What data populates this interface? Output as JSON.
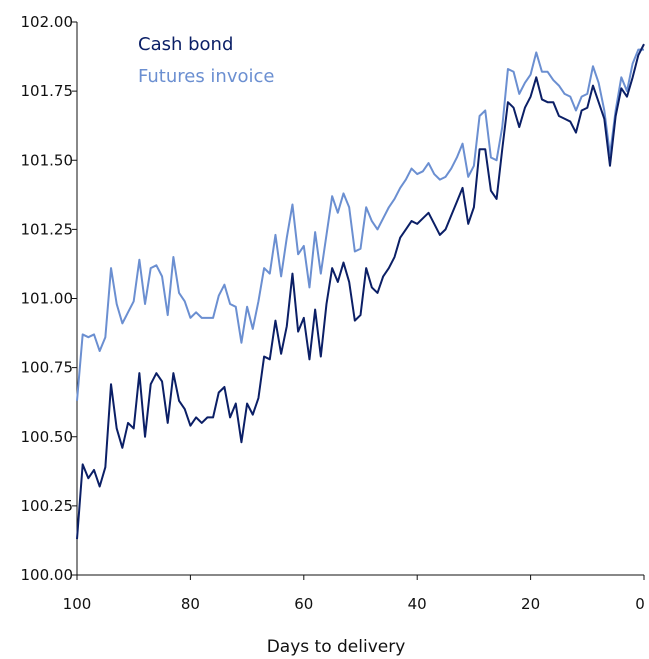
{
  "chart_data": {
    "type": "line",
    "xlabel": "Days to delivery",
    "ylabel": "",
    "xlim": [
      100,
      0
    ],
    "ylim": [
      100.0,
      102.0
    ],
    "x_ticks": [
      "100",
      "80",
      "60",
      "40",
      "20",
      "0"
    ],
    "y_ticks": [
      "100.00",
      "100.25",
      "100.50",
      "100.75",
      "101.00",
      "101.25",
      "101.50",
      "101.75",
      "102.00"
    ],
    "grid": false,
    "legend_position": "top-left",
    "x": [
      100,
      99,
      98,
      97,
      96,
      95,
      94,
      93,
      92,
      91,
      90,
      89,
      88,
      87,
      86,
      85,
      84,
      83,
      82,
      81,
      80,
      79,
      78,
      77,
      76,
      75,
      74,
      73,
      72,
      71,
      70,
      69,
      68,
      67,
      66,
      65,
      64,
      63,
      62,
      61,
      60,
      59,
      58,
      57,
      56,
      55,
      54,
      53,
      52,
      51,
      50,
      49,
      48,
      47,
      46,
      45,
      44,
      43,
      42,
      41,
      40,
      39,
      38,
      37,
      36,
      35,
      34,
      33,
      32,
      31,
      30,
      29,
      28,
      27,
      26,
      25,
      24,
      23,
      22,
      21,
      20,
      19,
      18,
      17,
      16,
      15,
      14,
      13,
      12,
      11,
      10,
      9,
      8,
      7,
      6,
      5,
      4,
      3,
      2,
      1,
      0
    ],
    "series": [
      {
        "name": "Cash bond",
        "color": "#0b1f66",
        "values": [
          100.13,
          100.4,
          100.35,
          100.38,
          100.32,
          100.39,
          100.69,
          100.53,
          100.46,
          100.55,
          100.53,
          100.73,
          100.5,
          100.69,
          100.73,
          100.7,
          100.55,
          100.73,
          100.63,
          100.6,
          100.54,
          100.57,
          100.55,
          100.57,
          100.57,
          100.66,
          100.68,
          100.57,
          100.62,
          100.48,
          100.62,
          100.58,
          100.64,
          100.79,
          100.78,
          100.92,
          100.8,
          100.9,
          101.09,
          100.88,
          100.93,
          100.78,
          100.96,
          100.79,
          100.98,
          101.11,
          101.06,
          101.13,
          101.06,
          100.92,
          100.94,
          101.11,
          101.04,
          101.02,
          101.08,
          101.11,
          101.15,
          101.22,
          101.25,
          101.28,
          101.27,
          101.29,
          101.31,
          101.27,
          101.23,
          101.25,
          101.3,
          101.35,
          101.4,
          101.27,
          101.33,
          101.54,
          101.54,
          101.39,
          101.36,
          101.54,
          101.71,
          101.69,
          101.62,
          101.69,
          101.73,
          101.8,
          101.72,
          101.71,
          101.71,
          101.66,
          101.65,
          101.64,
          101.6,
          101.68,
          101.69,
          101.77,
          101.71,
          101.65,
          101.48,
          101.66,
          101.76,
          101.73,
          101.8,
          101.88,
          101.92
        ]
      },
      {
        "name": "Futures invoice",
        "color": "#6b8fd1",
        "values": [
          100.63,
          100.87,
          100.86,
          100.87,
          100.81,
          100.86,
          101.11,
          100.98,
          100.91,
          100.95,
          100.99,
          101.14,
          100.98,
          101.11,
          101.12,
          101.08,
          100.94,
          101.15,
          101.02,
          100.99,
          100.93,
          100.95,
          100.93,
          100.93,
          100.93,
          101.01,
          101.05,
          100.98,
          100.97,
          100.84,
          100.97,
          100.89,
          100.99,
          101.11,
          101.09,
          101.23,
          101.08,
          101.22,
          101.34,
          101.16,
          101.19,
          101.04,
          101.24,
          101.09,
          101.23,
          101.37,
          101.31,
          101.38,
          101.33,
          101.17,
          101.18,
          101.33,
          101.28,
          101.25,
          101.29,
          101.33,
          101.36,
          101.4,
          101.43,
          101.47,
          101.45,
          101.46,
          101.49,
          101.45,
          101.43,
          101.44,
          101.47,
          101.51,
          101.56,
          101.44,
          101.48,
          101.66,
          101.68,
          101.51,
          101.5,
          101.62,
          101.83,
          101.82,
          101.74,
          101.78,
          101.81,
          101.89,
          101.82,
          101.82,
          101.79,
          101.77,
          101.74,
          101.73,
          101.68,
          101.73,
          101.74,
          101.84,
          101.78,
          101.68,
          101.52,
          101.68,
          101.8,
          101.75,
          101.85,
          101.9,
          101.9
        ]
      }
    ]
  }
}
